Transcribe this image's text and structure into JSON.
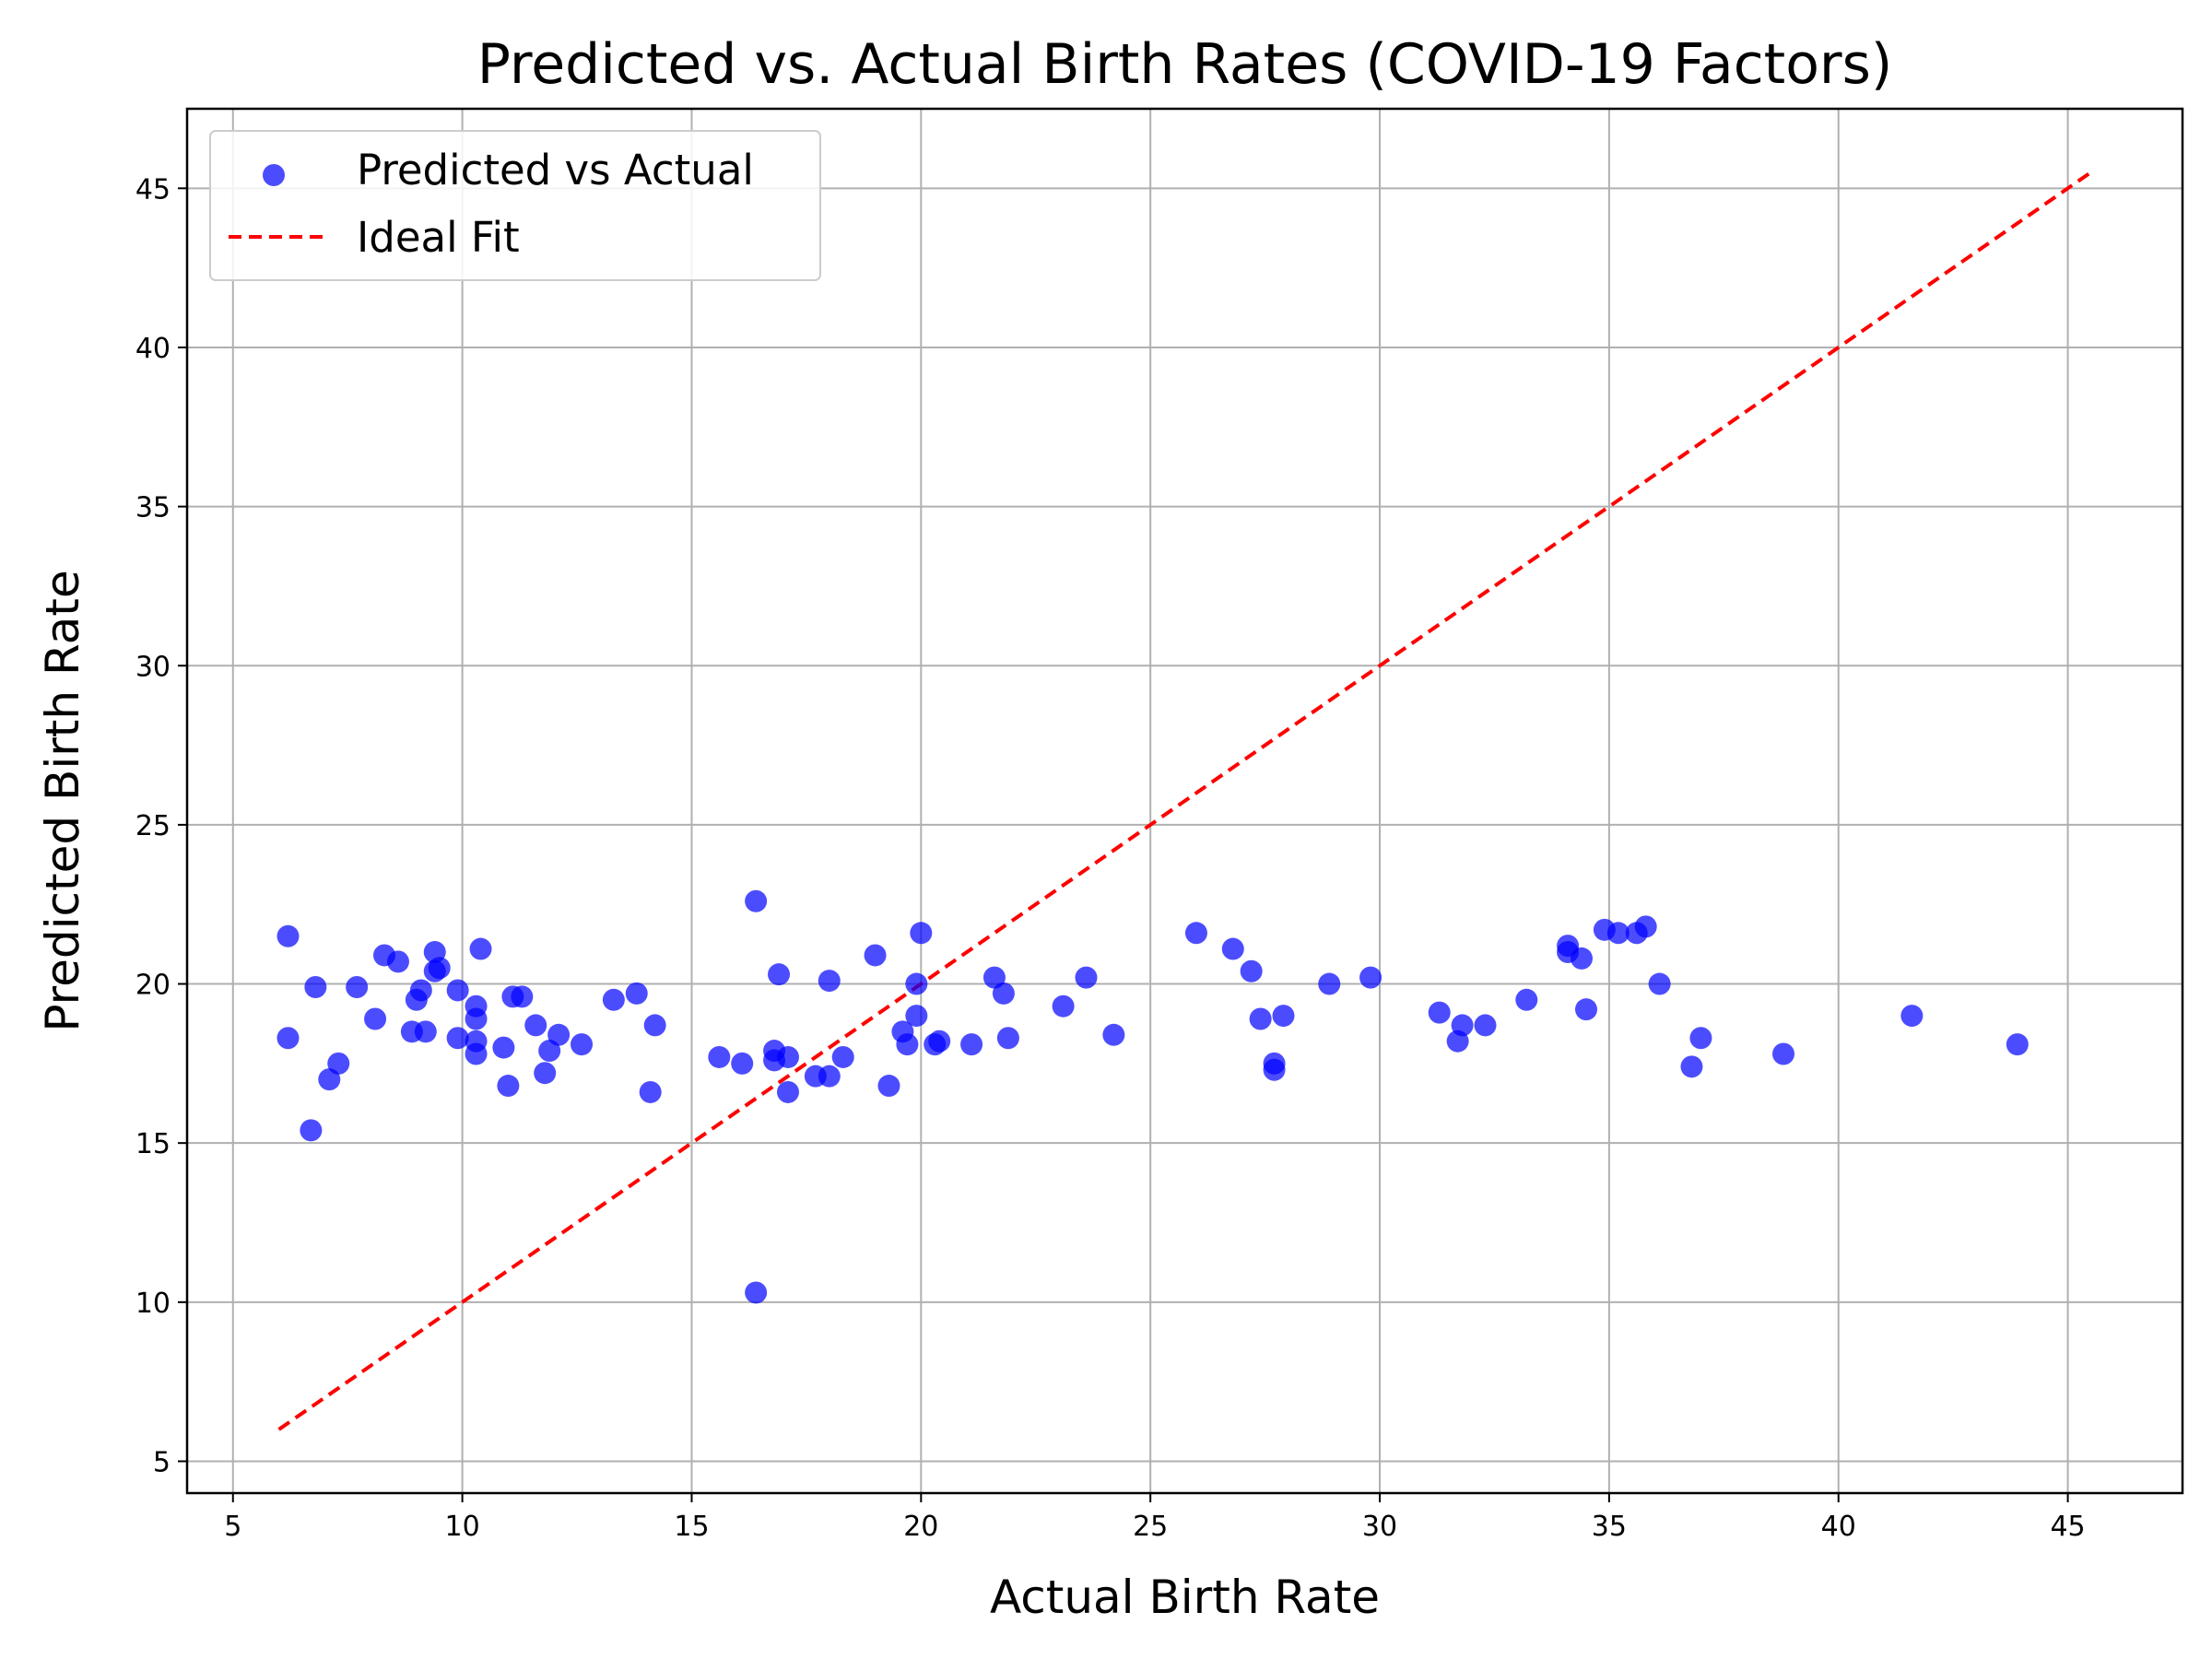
{
  "chart_data": {
    "type": "scatter",
    "title": "Predicted vs. Actual Birth Rates (COVID-19 Factors)",
    "xlabel": "Actual Birth Rate",
    "ylabel": "Predicted Birth Rate",
    "xlim": [
      4.0,
      47.5
    ],
    "ylim": [
      4.0,
      47.5
    ],
    "xticks": [
      5,
      10,
      15,
      20,
      25,
      30,
      35,
      40,
      45
    ],
    "yticks": [
      5,
      10,
      15,
      20,
      25,
      30,
      35,
      40,
      45
    ],
    "grid": true,
    "legend_position": "upper-left",
    "series": [
      {
        "name": "Predicted vs Actual",
        "kind": "scatter",
        "color": "#0000ff",
        "points": [
          [
            6.2,
            21.5
          ],
          [
            6.2,
            18.3
          ],
          [
            6.7,
            15.4
          ],
          [
            6.8,
            19.9
          ],
          [
            7.1,
            17.0
          ],
          [
            7.3,
            17.5
          ],
          [
            7.7,
            19.9
          ],
          [
            8.1,
            18.9
          ],
          [
            8.3,
            20.9
          ],
          [
            8.6,
            20.7
          ],
          [
            8.9,
            18.5
          ],
          [
            9.0,
            19.5
          ],
          [
            9.1,
            19.8
          ],
          [
            9.2,
            18.5
          ],
          [
            9.4,
            21.0
          ],
          [
            9.4,
            20.4
          ],
          [
            9.5,
            20.5
          ],
          [
            9.9,
            19.8
          ],
          [
            9.9,
            18.3
          ],
          [
            10.3,
            19.3
          ],
          [
            10.3,
            18.9
          ],
          [
            10.3,
            18.2
          ],
          [
            10.3,
            17.8
          ],
          [
            10.4,
            21.1
          ],
          [
            10.9,
            18.0
          ],
          [
            11.0,
            16.8
          ],
          [
            11.1,
            19.6
          ],
          [
            11.3,
            19.6
          ],
          [
            11.6,
            18.7
          ],
          [
            11.8,
            17.2
          ],
          [
            11.9,
            17.9
          ],
          [
            12.1,
            18.4
          ],
          [
            12.6,
            18.1
          ],
          [
            13.3,
            19.5
          ],
          [
            13.8,
            19.7
          ],
          [
            14.1,
            16.6
          ],
          [
            14.2,
            18.7
          ],
          [
            15.6,
            17.7
          ],
          [
            16.1,
            17.5
          ],
          [
            16.4,
            22.6
          ],
          [
            16.4,
            10.3
          ],
          [
            16.8,
            17.9
          ],
          [
            16.8,
            17.6
          ],
          [
            16.9,
            20.3
          ],
          [
            17.1,
            17.7
          ],
          [
            17.1,
            16.6
          ],
          [
            17.7,
            17.1
          ],
          [
            18.0,
            20.1
          ],
          [
            18.0,
            17.1
          ],
          [
            18.3,
            17.7
          ],
          [
            19.0,
            20.9
          ],
          [
            19.3,
            16.8
          ],
          [
            19.6,
            18.5
          ],
          [
            19.7,
            18.1
          ],
          [
            19.9,
            20.0
          ],
          [
            19.9,
            19.0
          ],
          [
            20.0,
            21.6
          ],
          [
            20.3,
            18.1
          ],
          [
            20.4,
            18.2
          ],
          [
            21.1,
            18.1
          ],
          [
            21.6,
            20.2
          ],
          [
            21.8,
            19.7
          ],
          [
            21.9,
            18.3
          ],
          [
            23.1,
            19.3
          ],
          [
            23.6,
            20.2
          ],
          [
            24.2,
            18.4
          ],
          [
            26.0,
            21.6
          ],
          [
            26.8,
            21.1
          ],
          [
            27.2,
            20.4
          ],
          [
            27.4,
            18.9
          ],
          [
            27.7,
            17.5
          ],
          [
            27.7,
            17.3
          ],
          [
            27.9,
            19.0
          ],
          [
            28.9,
            20.0
          ],
          [
            29.8,
            20.2
          ],
          [
            31.3,
            19.1
          ],
          [
            31.7,
            18.2
          ],
          [
            31.8,
            18.7
          ],
          [
            32.3,
            18.7
          ],
          [
            33.2,
            19.5
          ],
          [
            34.1,
            21.2
          ],
          [
            34.1,
            21.0
          ],
          [
            34.4,
            20.8
          ],
          [
            34.5,
            19.2
          ],
          [
            34.9,
            21.7
          ],
          [
            35.2,
            21.6
          ],
          [
            35.6,
            21.6
          ],
          [
            35.8,
            21.8
          ],
          [
            36.1,
            20.0
          ],
          [
            36.8,
            17.4
          ],
          [
            37.0,
            18.3
          ],
          [
            38.8,
            17.8
          ],
          [
            41.6,
            19.0
          ],
          [
            43.9,
            18.1
          ]
        ]
      },
      {
        "name": "Ideal Fit",
        "kind": "line",
        "style": "dashed",
        "color": "#ff0000",
        "points": [
          [
            6.0,
            6.0
          ],
          [
            45.5,
            45.5
          ]
        ]
      }
    ]
  }
}
